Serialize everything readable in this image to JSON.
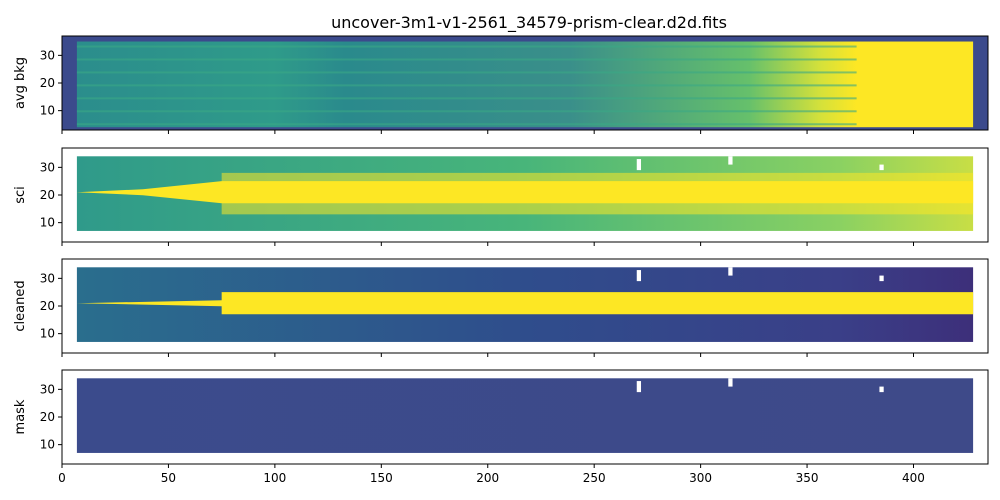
{
  "chart_data": {
    "type": "heatmap",
    "title": "uncover-3m1-v1-2561_34579-prism-clear.d2d.fits",
    "colormap": "viridis",
    "background": "#ffffff",
    "cmap": {
      "dark": "#3b4a8c",
      "mid": "#2f9a8a",
      "bright": "#fde724"
    },
    "xlim": [
      0,
      435
    ],
    "x_ticks": [
      0,
      50,
      100,
      150,
      200,
      250,
      300,
      350,
      400
    ],
    "shared_x": true,
    "panels": [
      {
        "ylabel": "avg bkg",
        "ylim": [
          3,
          37
        ],
        "y_ticks": [
          10,
          20,
          30
        ],
        "data_x": [
          7,
          428
        ],
        "data_y": [
          4,
          35
        ],
        "description_level": [
          0.1,
          0.12,
          0.14,
          0.16,
          0.18,
          0.2,
          0.22,
          0.24,
          0.26,
          0.3,
          0.35,
          0.42,
          0.55,
          0.75,
          0.95
        ]
      },
      {
        "ylabel": "sci",
        "ylim": [
          3,
          37
        ],
        "y_ticks": [
          10,
          20,
          30
        ],
        "data_x": [
          7,
          428
        ],
        "data_y": [
          7,
          34
        ],
        "description_level": [
          0.45,
          0.55,
          0.9,
          0.95,
          0.95,
          0.95,
          0.95,
          0.95,
          0.95,
          0.95,
          0.95,
          0.95,
          0.95,
          0.95,
          0.95
        ]
      },
      {
        "ylabel": "cleaned",
        "ylim": [
          3,
          37
        ],
        "y_ticks": [
          10,
          20,
          30
        ],
        "data_x": [
          7,
          428
        ],
        "data_y": [
          7,
          34
        ],
        "description_level": [
          0.35,
          0.4,
          0.9,
          0.95,
          0.95,
          0.95,
          0.95,
          0.95,
          0.95,
          0.95,
          0.95,
          0.95,
          0.95,
          0.95,
          0.95
        ]
      },
      {
        "ylabel": "mask",
        "ylim": [
          3,
          37
        ],
        "y_ticks": [
          10,
          20,
          30
        ],
        "data_x": [
          7,
          428
        ],
        "data_y": [
          7,
          34
        ],
        "description_level": [
          0.05,
          0.05,
          0.05,
          0.05,
          0.05,
          0.05,
          0.05,
          0.05,
          0.05,
          0.05,
          0.05,
          0.05,
          0.05,
          0.05,
          0.05
        ]
      }
    ]
  }
}
